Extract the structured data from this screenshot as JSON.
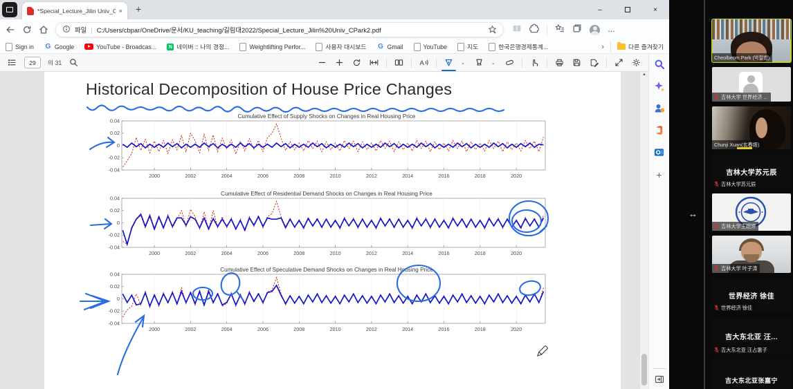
{
  "browser": {
    "tab_bar": {
      "tab_title": "*Special_Lecture_Jilin Univ_CPark",
      "close_tab": "×",
      "new_tab_button": "+",
      "window_controls": {
        "minimize": "–",
        "close": "×"
      }
    },
    "address_bar": {
      "file_label": "파일",
      "separator": "|",
      "url": "C:/Users/cbpar/OneDrive/문서/KU_teaching/길림대2022/Special_Lecture_Jilin%20Univ_CPark2.pdf",
      "more_label": "…"
    },
    "bookmarks": {
      "items": [
        {
          "label": "Sign in",
          "icon": "page"
        },
        {
          "label": "Google",
          "icon": "google"
        },
        {
          "label": "YouTube - Broadcas...",
          "icon": "youtube"
        },
        {
          "label": "네이버 :: 나의 경정...",
          "icon": "naver"
        },
        {
          "label": "Weightlifting Perfor...",
          "icon": "page"
        },
        {
          "label": "사용자 대시보드",
          "icon": "page"
        },
        {
          "label": "Gmail",
          "icon": "google"
        },
        {
          "label": "YouTube",
          "icon": "page"
        },
        {
          "label": "지도",
          "icon": "page"
        },
        {
          "label": "한국은행경제통계...",
          "icon": "page"
        }
      ],
      "overflow": "›",
      "other_favorites": "다른 즐겨찾기"
    }
  },
  "pdf_toolbar": {
    "page_current": "29",
    "page_total": "의 31"
  },
  "edge_sidebar": {
    "icons": [
      "search",
      "copilot-discover",
      "people",
      "office",
      "outlook",
      "add"
    ]
  },
  "document": {
    "title": "Historical Decomposition of House Price Changes"
  },
  "ink_annotations": [
    "wavy-underline-title",
    "arrow-supply-chart",
    "arrow-residential-chart",
    "double-circle-residential-2021",
    "double-chevron-speculative-chart",
    "circle-speculative-2002",
    "circle-speculative-2003",
    "circle-speculative-2007-peak",
    "circle-speculative-2021",
    "long-arrow-speculative-1999"
  ],
  "desktop": {
    "resize_cursor": "↔"
  },
  "chart_data": [
    {
      "type": "line",
      "title": "Cumulative Effect of Supply Shocks on Changes in Real Housing Price",
      "xlim": [
        1998.2,
        2021.6
      ],
      "ylim": [
        -0.04,
        0.04
      ],
      "xticks": [
        2000,
        2002,
        2004,
        2006,
        2008,
        2010,
        2012,
        2014,
        2016,
        2018,
        2020
      ],
      "yticks": [
        -0.04,
        -0.02,
        0,
        0.02,
        0.04
      ],
      "x_start": 1998.25,
      "x_step": 0.25,
      "series": [
        {
          "name": "red-dashed",
          "color": "#d42a1c",
          "style": "dashed",
          "values": [
            -0.035,
            -0.025,
            -0.013,
            0.013,
            -0.008,
            0.01,
            -0.012,
            0.007,
            -0.01,
            0.008,
            -0.013,
            0.009,
            -0.007,
            0.016,
            -0.01,
            0.02,
            0.008,
            -0.012,
            0.018,
            -0.008,
            0.017,
            -0.01,
            0.012,
            -0.006,
            0.009,
            -0.014,
            0.007,
            -0.009,
            0.011,
            -0.006,
            0.008,
            -0.01,
            0.013,
            0.02,
            0.035,
            0.012,
            -0.008,
            0.006,
            -0.007,
            0.004,
            -0.009,
            0.008,
            -0.005,
            0.007,
            -0.01,
            0.006,
            -0.007,
            0.004,
            -0.009,
            0.008,
            -0.005,
            0.007,
            -0.01,
            0.006,
            -0.007,
            0.004,
            -0.009,
            0.008,
            -0.005,
            0.007,
            -0.01,
            0.006,
            -0.007,
            0.004,
            -0.009,
            0.008,
            -0.005,
            0.007,
            -0.01,
            0.006,
            -0.007,
            0.004,
            -0.009,
            0.008,
            -0.005,
            0.007,
            -0.01,
            0.006,
            -0.007,
            0.004,
            -0.009,
            0.008,
            -0.005,
            0.007,
            -0.01,
            0.006,
            -0.007,
            0.004,
            -0.009,
            0.008,
            -0.005,
            0.007,
            -0.01,
            0.014
          ]
        },
        {
          "name": "blue-solid",
          "color": "#1414cc",
          "style": "solid",
          "values": [
            0.002,
            -0.003,
            0.004,
            -0.002,
            0.003,
            -0.004,
            0.002,
            -0.003,
            0.002,
            -0.003,
            0.004,
            -0.002,
            0.003,
            -0.004,
            0.002,
            -0.003,
            0.002,
            -0.003,
            0.004,
            -0.002,
            0.003,
            -0.004,
            0.002,
            -0.003,
            0.002,
            -0.003,
            0.004,
            -0.002,
            0.003,
            -0.004,
            0.002,
            -0.003,
            0.002,
            -0.003,
            0.004,
            -0.002,
            0.003,
            -0.004,
            0.002,
            -0.003,
            0.002,
            -0.003,
            0.004,
            -0.002,
            0.003,
            -0.004,
            0.002,
            -0.003,
            0.002,
            -0.003,
            0.004,
            -0.002,
            0.003,
            -0.004,
            0.002,
            -0.003,
            0.002,
            -0.003,
            0.004,
            -0.002,
            0.003,
            -0.004,
            0.002,
            -0.003,
            0.002,
            -0.003,
            0.004,
            -0.002,
            0.003,
            -0.004,
            0.002,
            -0.003,
            0.002,
            -0.003,
            0.004,
            -0.002,
            0.003,
            -0.004,
            0.002,
            -0.003,
            0.002,
            -0.003,
            0.004,
            -0.002,
            0.003,
            -0.004,
            0.002,
            -0.003,
            0.003,
            -0.002,
            0.004,
            -0.003,
            0.002,
            0.001
          ]
        }
      ]
    },
    {
      "type": "line",
      "title": "Cumulative Effect of Residential Demand Shocks on Changes in Real Housing Price",
      "xlim": [
        1998.2,
        2021.6
      ],
      "ylim": [
        -0.04,
        0.04
      ],
      "xticks": [
        2000,
        2002,
        2004,
        2006,
        2008,
        2010,
        2012,
        2014,
        2016,
        2018,
        2020
      ],
      "yticks": [
        -0.04,
        -0.02,
        0,
        0.02,
        0.04
      ],
      "x_start": 1998.25,
      "x_step": 0.25,
      "series": [
        {
          "name": "red-dashed",
          "color": "#d42a1c",
          "style": "dashed",
          "values": [
            -0.03,
            -0.035,
            -0.01,
            0.005,
            0.012,
            -0.008,
            0.01,
            -0.012,
            0.008,
            -0.01,
            0.013,
            -0.008,
            0.006,
            0.02,
            -0.006,
            0.022,
            0.01,
            -0.01,
            0.018,
            -0.012,
            0.02,
            -0.008,
            0.01,
            -0.008,
            0.008,
            -0.012,
            0.006,
            -0.014,
            0.01,
            -0.006,
            0.012,
            -0.008,
            0.01,
            0.015,
            0.035,
            0.01,
            -0.006,
            0.007,
            -0.008,
            0.005,
            -0.01,
            0.009,
            -0.006,
            0.008,
            -0.009,
            0.007,
            -0.008,
            0.005,
            -0.01,
            0.009,
            -0.006,
            0.008,
            -0.009,
            0.007,
            -0.008,
            0.005,
            -0.01,
            0.009,
            -0.006,
            0.008,
            -0.009,
            0.007,
            -0.008,
            0.005,
            -0.01,
            0.009,
            -0.006,
            0.008,
            -0.009,
            0.007,
            -0.008,
            0.005,
            -0.01,
            0.009,
            -0.006,
            0.008,
            -0.009,
            0.007,
            -0.008,
            0.005,
            -0.01,
            0.009,
            -0.006,
            0.008,
            -0.009,
            0.007,
            -0.008,
            0.005,
            -0.01,
            0.009,
            -0.006,
            0.008,
            -0.009,
            0.012
          ]
        },
        {
          "name": "blue-solid",
          "color": "#1414cc",
          "style": "solid",
          "values": [
            -0.012,
            -0.035,
            -0.008,
            0.006,
            0.014,
            -0.006,
            0.012,
            -0.01,
            0.01,
            -0.008,
            0.011,
            -0.006,
            0.008,
            0.008,
            -0.004,
            0.01,
            0.006,
            -0.008,
            0.008,
            -0.01,
            0.007,
            -0.006,
            0.006,
            -0.006,
            0.006,
            -0.01,
            0.004,
            -0.012,
            0.008,
            -0.004,
            0.01,
            -0.006,
            0.008,
            0.006,
            0.006,
            0.008,
            -0.008,
            0.006,
            -0.007,
            0.004,
            -0.008,
            0.007,
            -0.005,
            0.006,
            -0.007,
            0.006,
            -0.007,
            0.004,
            -0.008,
            0.007,
            -0.005,
            0.006,
            -0.007,
            0.006,
            -0.007,
            0.004,
            -0.008,
            0.007,
            -0.005,
            0.006,
            -0.007,
            0.006,
            -0.007,
            0.004,
            -0.008,
            0.007,
            -0.005,
            0.006,
            -0.007,
            0.006,
            -0.007,
            0.004,
            -0.008,
            0.007,
            -0.005,
            0.006,
            -0.007,
            0.006,
            -0.007,
            0.004,
            -0.008,
            0.007,
            -0.005,
            0.006,
            -0.007,
            0.006,
            -0.007,
            0.004,
            -0.008,
            0.007,
            -0.005,
            0.006,
            -0.007,
            0.008
          ]
        }
      ]
    },
    {
      "type": "line",
      "title": "Cumulative Effect of Speculative Demand Shocks on Changes in Real Housing Price",
      "xlim": [
        1998.2,
        2021.6
      ],
      "ylim": [
        -0.04,
        0.04
      ],
      "xticks": [
        2000,
        2002,
        2004,
        2006,
        2008,
        2010,
        2012,
        2014,
        2016,
        2018,
        2020
      ],
      "yticks": [
        -0.04,
        -0.02,
        0,
        0.02,
        0.04
      ],
      "x_start": 1998.25,
      "x_step": 0.25,
      "series": [
        {
          "name": "red-dashed",
          "color": "#d42a1c",
          "style": "dashed",
          "values": [
            -0.03,
            -0.018,
            -0.012,
            0.008,
            -0.01,
            0.012,
            -0.014,
            0.008,
            -0.012,
            0.01,
            -0.008,
            0.012,
            -0.01,
            0.018,
            -0.008,
            0.012,
            -0.01,
            0.014,
            -0.012,
            0.016,
            -0.008,
            0.01,
            -0.012,
            -0.008,
            0.01,
            -0.012,
            0.008,
            -0.01,
            0.012,
            -0.006,
            0.01,
            -0.008,
            0.012,
            0.014,
            0.035,
            0.008,
            -0.01,
            0.006,
            -0.008,
            0.005,
            -0.009,
            0.007,
            -0.006,
            0.009,
            -0.007,
            0.006,
            -0.008,
            0.005,
            -0.009,
            0.007,
            -0.006,
            0.009,
            -0.007,
            0.006,
            -0.008,
            0.005,
            -0.009,
            0.007,
            -0.006,
            0.009,
            -0.007,
            0.006,
            -0.008,
            0.005,
            -0.009,
            0.007,
            -0.006,
            0.009,
            -0.007,
            0.006,
            -0.008,
            0.005,
            -0.009,
            0.007,
            -0.006,
            0.009,
            -0.007,
            0.006,
            -0.008,
            0.005,
            -0.009,
            0.007,
            -0.006,
            0.009,
            -0.007,
            0.006,
            -0.008,
            0.005,
            -0.009,
            0.007,
            -0.006,
            0.009,
            -0.007,
            0.018
          ]
        },
        {
          "name": "blue-solid",
          "color": "#1414cc",
          "style": "solid",
          "values": [
            0.008,
            -0.006,
            0.006,
            -0.01,
            -0.008,
            0.01,
            -0.012,
            0.006,
            -0.01,
            0.008,
            -0.006,
            0.01,
            -0.008,
            0.012,
            -0.006,
            0.01,
            -0.008,
            0.012,
            -0.01,
            0.012,
            -0.006,
            0.008,
            -0.01,
            -0.006,
            0.008,
            -0.01,
            0.006,
            -0.008,
            0.01,
            -0.004,
            0.008,
            -0.006,
            0.01,
            0.012,
            0.022,
            0.006,
            -0.008,
            0.005,
            -0.007,
            0.004,
            -0.008,
            0.006,
            -0.005,
            0.008,
            -0.006,
            0.005,
            -0.007,
            0.004,
            -0.008,
            0.006,
            -0.005,
            0.008,
            -0.006,
            0.005,
            -0.007,
            0.004,
            -0.008,
            0.006,
            -0.005,
            0.008,
            -0.006,
            0.005,
            -0.007,
            0.004,
            -0.008,
            0.006,
            -0.005,
            0.008,
            -0.006,
            0.005,
            -0.007,
            0.004,
            -0.008,
            0.006,
            -0.005,
            0.008,
            -0.006,
            0.005,
            -0.007,
            0.004,
            -0.008,
            0.006,
            -0.005,
            0.008,
            -0.006,
            0.005,
            -0.007,
            0.004,
            -0.008,
            0.006,
            -0.005,
            0.008,
            -0.006,
            0.012
          ]
        }
      ]
    }
  ],
  "participants": [
    {
      "name": "Cheolbeom Park (박철범)",
      "muted": false,
      "highlight": true
    },
    {
      "name": "吉林大学 世界经济 ...",
      "muted": true
    },
    {
      "name": "Chunji Xuan(玄春姬)",
      "muted": false
    },
    {
      "name": "吉林大学苏元辰",
      "center_text": "吉林大学苏元辰",
      "muted": true
    },
    {
      "name": "吉林大学王婉婷",
      "muted": true
    },
    {
      "name": "吉林大学 叶子涛",
      "muted": true
    },
    {
      "name": "世界经济 徐佳",
      "center_text": "世界经济 徐佳",
      "muted": true
    },
    {
      "name": "吉大东北亚 汪占惠子",
      "center_text": "吉大东北亚 汪...",
      "muted": true
    },
    {
      "name": "吉大东北亚张嘉宁",
      "center_text": "吉大东北亚张嘉宁",
      "muted": true
    }
  ]
}
